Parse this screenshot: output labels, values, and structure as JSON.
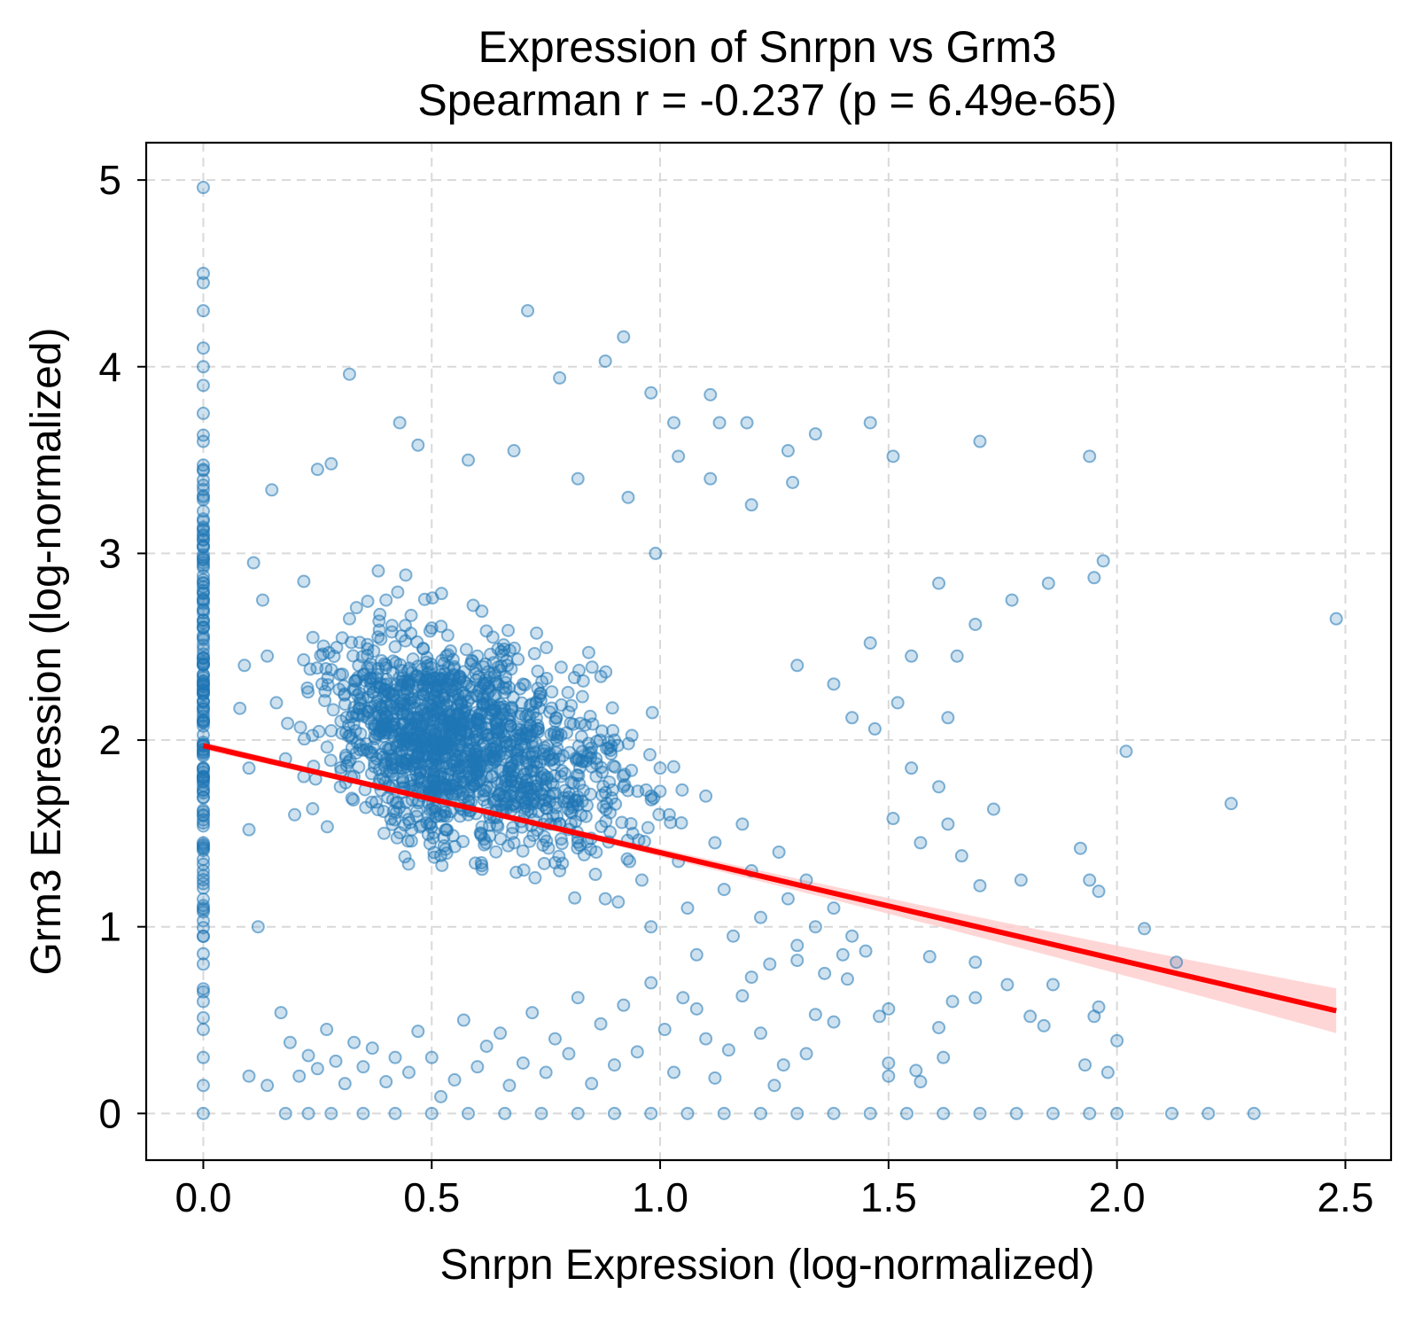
{
  "chart_data": {
    "type": "scatter",
    "title": "Expression of Snrpn vs Grm3",
    "subtitle": "Spearman r = -0.237 (p = 6.49e-65)",
    "xlabel": "Snrpn Expression (log-normalized)",
    "ylabel": "Grm3 Expression (log-normalized)",
    "xlim": [
      -0.125,
      2.6
    ],
    "ylim": [
      -0.25,
      5.2
    ],
    "xticks": [
      0.0,
      0.5,
      1.0,
      1.5,
      2.0,
      2.5
    ],
    "xtick_labels": [
      "0.0",
      "0.5",
      "1.0",
      "1.5",
      "2.0",
      "2.5"
    ],
    "yticks": [
      0,
      1,
      2,
      3,
      4,
      5
    ],
    "ytick_labels": [
      "0",
      "1",
      "2",
      "3",
      "4",
      "5"
    ],
    "grid": true,
    "colors": {
      "points": "#1f77b4",
      "regression": "#ff0000",
      "ci_band": "#ffcccc"
    },
    "regression": {
      "x": [
        0.0,
        2.48
      ],
      "y": [
        1.97,
        0.55
      ],
      "ci_at_end": [
        0.44,
        0.68
      ]
    },
    "series": [
      {
        "values": [
          [
            0,
            4.96
          ],
          [
            0,
            4.5
          ],
          [
            0,
            4.45
          ],
          [
            0,
            4.3
          ],
          [
            0,
            4.1
          ],
          [
            0,
            4.0
          ],
          [
            0,
            3.9
          ],
          [
            0,
            3.75
          ],
          [
            0,
            3.6
          ],
          [
            0,
            3.45
          ],
          [
            0,
            3.3
          ],
          [
            0,
            3.1
          ],
          [
            0,
            2.95
          ],
          [
            0,
            2.8
          ],
          [
            0,
            2.6
          ],
          [
            0,
            2.4
          ],
          [
            0,
            2.25
          ],
          [
            0,
            2.1
          ],
          [
            0,
            1.95
          ],
          [
            0,
            1.8
          ],
          [
            0,
            1.6
          ],
          [
            0,
            1.45
          ],
          [
            0,
            1.3
          ],
          [
            0,
            1.1
          ],
          [
            0,
            0.95
          ],
          [
            0,
            0.8
          ],
          [
            0,
            0.6
          ],
          [
            0,
            0.45
          ],
          [
            0,
            0.3
          ],
          [
            0,
            0.15
          ],
          [
            0,
            0.0
          ],
          [
            0.71,
            4.3
          ],
          [
            0.92,
            4.16
          ],
          [
            0.32,
            3.96
          ],
          [
            0.78,
            3.94
          ],
          [
            0.88,
            4.03
          ],
          [
            0.98,
            3.86
          ],
          [
            1.11,
            3.85
          ],
          [
            0.43,
            3.7
          ],
          [
            1.03,
            3.7
          ],
          [
            1.13,
            3.7
          ],
          [
            1.19,
            3.7
          ],
          [
            1.46,
            3.7
          ],
          [
            1.34,
            3.64
          ],
          [
            1.7,
            3.6
          ],
          [
            0.47,
            3.58
          ],
          [
            0.68,
            3.55
          ],
          [
            1.28,
            3.55
          ],
          [
            1.04,
            3.52
          ],
          [
            1.51,
            3.52
          ],
          [
            1.94,
            3.52
          ],
          [
            0.25,
            3.45
          ],
          [
            0.28,
            3.48
          ],
          [
            0.58,
            3.5
          ],
          [
            0.82,
            3.4
          ],
          [
            1.11,
            3.4
          ],
          [
            1.29,
            3.38
          ],
          [
            0.15,
            3.34
          ],
          [
            0.93,
            3.3
          ],
          [
            1.2,
            3.26
          ],
          [
            0.99,
            3.0
          ],
          [
            1.61,
            2.84
          ],
          [
            1.85,
            2.84
          ],
          [
            1.77,
            2.75
          ],
          [
            1.69,
            2.62
          ],
          [
            1.95,
            2.87
          ],
          [
            1.97,
            2.96
          ],
          [
            2.48,
            2.65
          ],
          [
            1.55,
            2.45
          ],
          [
            1.65,
            2.45
          ],
          [
            1.46,
            2.52
          ],
          [
            1.3,
            2.4
          ],
          [
            1.38,
            2.3
          ],
          [
            1.52,
            2.2
          ],
          [
            1.63,
            2.12
          ],
          [
            1.42,
            2.12
          ],
          [
            1.47,
            2.06
          ],
          [
            1.55,
            1.85
          ],
          [
            1.61,
            1.75
          ],
          [
            1.73,
            1.63
          ],
          [
            1.51,
            1.58
          ],
          [
            1.57,
            1.45
          ],
          [
            1.63,
            1.55
          ],
          [
            1.66,
            1.38
          ],
          [
            1.7,
            1.22
          ],
          [
            1.79,
            1.25
          ],
          [
            1.92,
            1.42
          ],
          [
            1.94,
            1.25
          ],
          [
            1.96,
            1.19
          ],
          [
            2.02,
            1.94
          ],
          [
            2.25,
            1.66
          ],
          [
            2.06,
            0.99
          ],
          [
            2.13,
            0.81
          ],
          [
            1.76,
            0.69
          ],
          [
            1.86,
            0.69
          ],
          [
            1.81,
            0.52
          ],
          [
            1.84,
            0.47
          ],
          [
            1.95,
            0.52
          ],
          [
            1.96,
            0.57
          ],
          [
            1.93,
            0.26
          ],
          [
            2.0,
            0.39
          ],
          [
            1.98,
            0.22
          ],
          [
            1.69,
            0.81
          ],
          [
            1.69,
            0.62
          ],
          [
            1.64,
            0.6
          ],
          [
            1.62,
            0.3
          ],
          [
            1.61,
            0.46
          ],
          [
            1.59,
            0.84
          ],
          [
            1.56,
            0.23
          ],
          [
            1.57,
            0.17
          ],
          [
            1.5,
            0.56
          ],
          [
            1.5,
            0.27
          ],
          [
            1.5,
            0.2
          ],
          [
            1.48,
            0.52
          ],
          [
            1.45,
            0.87
          ],
          [
            1.42,
            0.95
          ],
          [
            1.41,
            0.72
          ],
          [
            1.38,
            0.49
          ],
          [
            1.34,
            0.53
          ],
          [
            1.32,
            0.32
          ],
          [
            1.3,
            0.82
          ],
          [
            1.27,
            0.26
          ],
          [
            1.25,
            0.15
          ],
          [
            1.22,
            0.43
          ],
          [
            1.2,
            0.73
          ],
          [
            1.18,
            0.63
          ],
          [
            1.15,
            0.34
          ],
          [
            1.12,
            0.19
          ],
          [
            1.1,
            0.4
          ],
          [
            1.08,
            0.56
          ],
          [
            1.05,
            0.62
          ],
          [
            1.03,
            0.22
          ],
          [
            1.01,
            0.45
          ],
          [
            0.98,
            0.7
          ],
          [
            0.95,
            0.33
          ],
          [
            0.92,
            0.58
          ],
          [
            0.9,
            0.26
          ],
          [
            0.87,
            0.48
          ],
          [
            0.85,
            0.16
          ],
          [
            0.82,
            0.62
          ],
          [
            0.8,
            0.32
          ],
          [
            0.77,
            0.4
          ],
          [
            0.75,
            0.22
          ],
          [
            0.72,
            0.54
          ],
          [
            0.7,
            0.27
          ],
          [
            0.67,
            0.15
          ],
          [
            0.65,
            0.43
          ],
          [
            0.62,
            0.36
          ],
          [
            0.6,
            0.25
          ],
          [
            0.57,
            0.5
          ],
          [
            0.55,
            0.18
          ],
          [
            0.52,
            0.09
          ],
          [
            0.5,
            0.3
          ],
          [
            0.47,
            0.44
          ],
          [
            0.45,
            0.22
          ],
          [
            0.42,
            0.3
          ],
          [
            0.4,
            0.17
          ],
          [
            0.37,
            0.35
          ],
          [
            0.35,
            0.25
          ],
          [
            0.33,
            0.38
          ],
          [
            0.31,
            0.16
          ],
          [
            0.29,
            0.28
          ],
          [
            0.27,
            0.45
          ],
          [
            0.25,
            0.24
          ],
          [
            0.23,
            0.31
          ],
          [
            0.21,
            0.2
          ],
          [
            0.19,
            0.38
          ],
          [
            0.17,
            0.54
          ],
          [
            0.14,
            0.15
          ],
          [
            0.1,
            0.2
          ],
          [
            0.12,
            1.0
          ],
          [
            0.1,
            1.52
          ],
          [
            0.1,
            1.85
          ],
          [
            0.09,
            2.4
          ],
          [
            0.08,
            2.17
          ],
          [
            0.11,
            2.95
          ],
          [
            0.13,
            2.75
          ],
          [
            0.14,
            2.45
          ],
          [
            0.16,
            2.2
          ],
          [
            0.18,
            1.9
          ],
          [
            0.2,
            1.6
          ],
          [
            0.22,
            2.85
          ],
          [
            0.24,
            2.55
          ],
          [
            0.26,
            2.3
          ],
          [
            0.28,
            2.05
          ],
          [
            0.3,
            1.75
          ],
          [
            0.32,
            2.65
          ],
          [
            0.34,
            2.4
          ],
          [
            0.36,
            2.15
          ],
          [
            0.38,
            1.9
          ],
          [
            0.4,
            2.75
          ],
          [
            0.42,
            2.5
          ],
          [
            0.44,
            2.25
          ],
          [
            0.46,
            2.0
          ],
          [
            0.48,
            1.7
          ],
          [
            0.5,
            2.6
          ],
          [
            0.52,
            2.35
          ],
          [
            0.54,
            2.1
          ],
          [
            0.56,
            1.85
          ],
          [
            0.58,
            1.6
          ],
          [
            0.6,
            2.45
          ],
          [
            0.62,
            2.2
          ],
          [
            0.64,
            1.95
          ],
          [
            0.66,
            1.7
          ],
          [
            0.68,
            1.45
          ],
          [
            0.7,
            2.3
          ],
          [
            0.72,
            2.05
          ],
          [
            0.74,
            1.8
          ],
          [
            0.76,
            1.55
          ],
          [
            0.78,
            1.3
          ],
          [
            0.8,
            2.15
          ],
          [
            0.82,
            1.9
          ],
          [
            0.84,
            1.65
          ],
          [
            0.86,
            1.4
          ],
          [
            0.88,
            1.15
          ],
          [
            0.9,
            2.0
          ],
          [
            0.92,
            1.75
          ],
          [
            0.94,
            1.5
          ],
          [
            0.96,
            1.25
          ],
          [
            0.98,
            1.0
          ],
          [
            1.0,
            1.85
          ],
          [
            1.02,
            1.6
          ],
          [
            1.04,
            1.35
          ],
          [
            1.06,
            1.1
          ],
          [
            1.08,
            0.85
          ],
          [
            1.1,
            1.7
          ],
          [
            1.12,
            1.45
          ],
          [
            1.14,
            1.2
          ],
          [
            1.16,
            0.95
          ],
          [
            1.18,
            1.55
          ],
          [
            1.2,
            1.3
          ],
          [
            1.22,
            1.05
          ],
          [
            1.24,
            0.8
          ],
          [
            1.26,
            1.4
          ],
          [
            1.28,
            1.15
          ],
          [
            1.3,
            0.9
          ],
          [
            1.32,
            1.25
          ],
          [
            1.34,
            1.0
          ],
          [
            1.36,
            0.75
          ],
          [
            1.38,
            1.1
          ],
          [
            1.4,
            0.85
          ],
          [
            0.18,
            0.0
          ],
          [
            0.23,
            0.0
          ],
          [
            0.28,
            0.0
          ],
          [
            0.35,
            0.0
          ],
          [
            0.42,
            0.0
          ],
          [
            0.5,
            0.0
          ],
          [
            0.58,
            0.0
          ],
          [
            0.66,
            0.0
          ],
          [
            0.74,
            0.0
          ],
          [
            0.82,
            0.0
          ],
          [
            0.9,
            0.0
          ],
          [
            0.98,
            0.0
          ],
          [
            1.06,
            0.0
          ],
          [
            1.14,
            0.0
          ],
          [
            1.22,
            0.0
          ],
          [
            1.3,
            0.0
          ],
          [
            1.38,
            0.0
          ],
          [
            1.46,
            0.0
          ],
          [
            1.54,
            0.0
          ],
          [
            1.62,
            0.0
          ],
          [
            1.7,
            0.0
          ],
          [
            1.78,
            0.0
          ],
          [
            1.86,
            0.0
          ],
          [
            1.94,
            0.0
          ],
          [
            2.0,
            0.0
          ],
          [
            2.12,
            0.0
          ],
          [
            2.2,
            0.0
          ],
          [
            2.3,
            0.0
          ]
        ]
      }
    ]
  }
}
